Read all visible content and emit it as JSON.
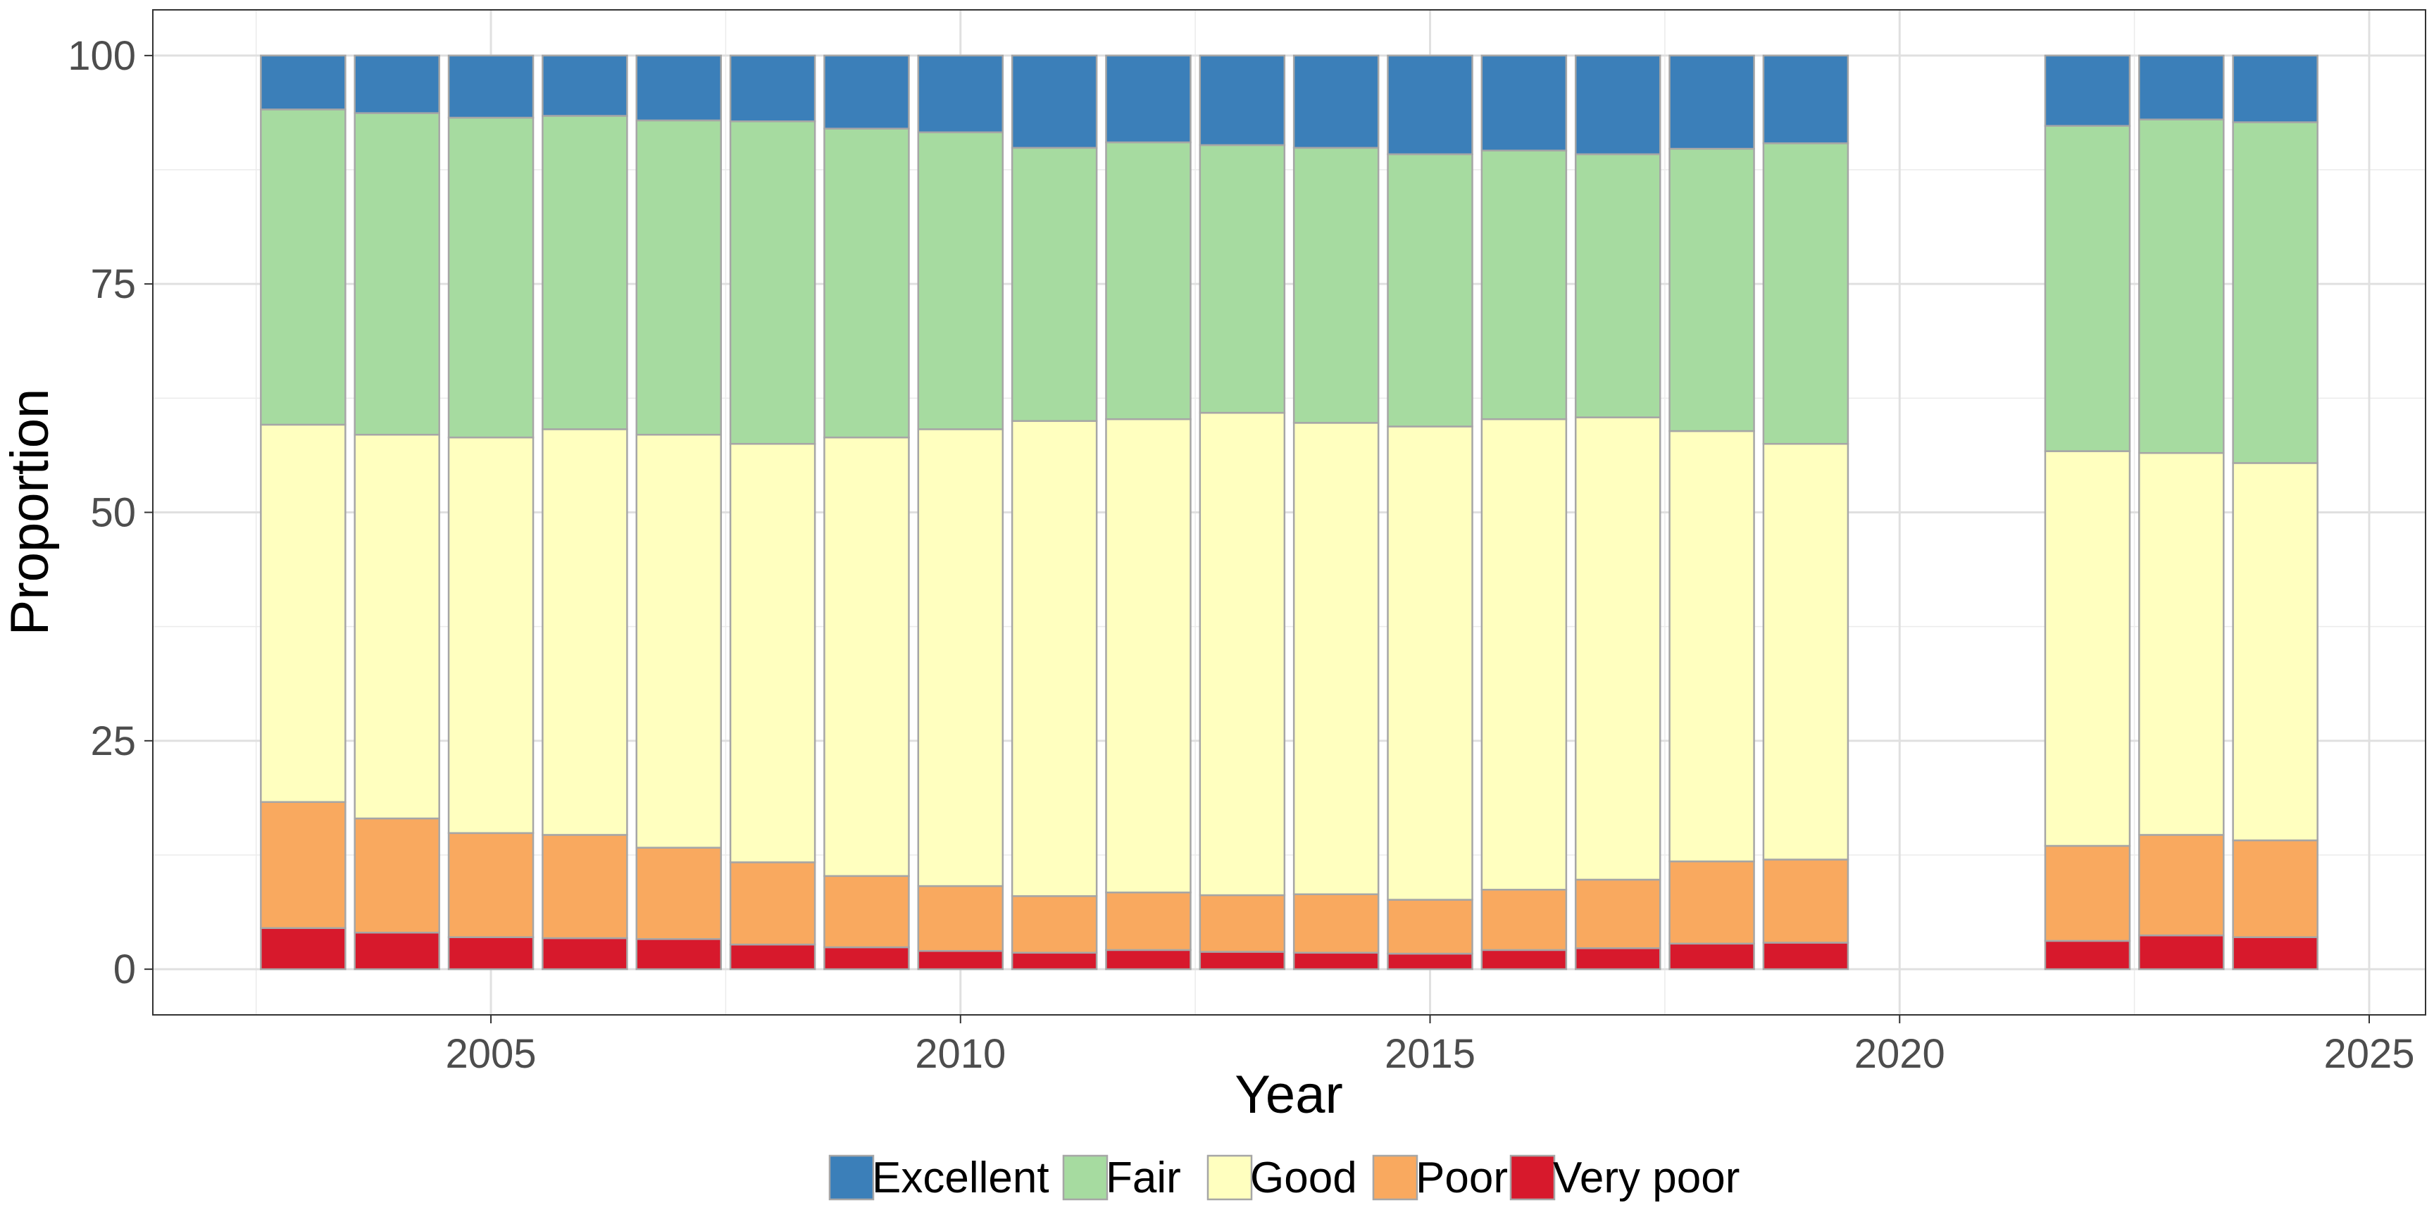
{
  "chart_data": {
    "type": "bar",
    "stacked": true,
    "title": "",
    "xlabel": "Year",
    "ylabel": "Proportion",
    "xlim": [
      2001.4,
      2025.6
    ],
    "ylim": [
      -5,
      105
    ],
    "x_ticks": [
      2005,
      2010,
      2015,
      2020,
      2025
    ],
    "y_ticks": [
      0,
      25,
      50,
      75,
      100
    ],
    "grid": true,
    "legend_position": "bottom",
    "stack_order": [
      "Very poor",
      "Poor",
      "Good",
      "Fair",
      "Excellent"
    ],
    "legend_order": [
      "Excellent",
      "Fair",
      "Good",
      "Poor",
      "Very poor"
    ],
    "colors": {
      "Excellent": "#3b7fb9",
      "Fair": "#a6dba0",
      "Good": "#ffffbf",
      "Poor": "#f9a95f",
      "Very poor": "#d7192c"
    },
    "x": [
      2003,
      2004,
      2005,
      2006,
      2007,
      2008,
      2009,
      2010,
      2011,
      2012,
      2013,
      2014,
      2015,
      2016,
      2017,
      2018,
      2019,
      2022,
      2023,
      2024
    ],
    "series": [
      {
        "name": "Very poor",
        "values": [
          4.5,
          4.0,
          3.5,
          3.4,
          3.3,
          2.7,
          2.4,
          2.0,
          1.8,
          2.1,
          1.9,
          1.8,
          1.7,
          2.1,
          2.3,
          2.8,
          2.9,
          3.1,
          3.7,
          3.5
        ]
      },
      {
        "name": "Poor",
        "values": [
          13.8,
          12.5,
          11.4,
          11.3,
          10.0,
          9.0,
          7.8,
          7.1,
          6.2,
          6.3,
          6.2,
          6.4,
          5.9,
          6.6,
          7.5,
          9.0,
          9.1,
          10.4,
          11.0,
          10.6
        ]
      },
      {
        "name": "Good",
        "values": [
          41.3,
          42.0,
          43.3,
          44.4,
          45.2,
          45.8,
          48.0,
          50.0,
          52.0,
          51.8,
          52.8,
          51.6,
          51.8,
          51.5,
          50.6,
          47.1,
          45.5,
          43.2,
          41.8,
          41.3
        ]
      },
      {
        "name": "Fair",
        "values": [
          34.5,
          35.2,
          35.0,
          34.3,
          34.4,
          35.3,
          33.8,
          32.5,
          29.9,
          30.3,
          29.3,
          30.1,
          29.8,
          29.4,
          28.8,
          30.9,
          32.9,
          35.6,
          36.5,
          37.3
        ]
      },
      {
        "name": "Excellent",
        "values": [
          5.9,
          6.3,
          6.8,
          6.6,
          7.1,
          7.2,
          8.0,
          8.4,
          10.1,
          9.5,
          9.8,
          10.1,
          10.8,
          10.4,
          10.8,
          10.2,
          9.6,
          7.7,
          7.0,
          7.3
        ]
      }
    ]
  }
}
